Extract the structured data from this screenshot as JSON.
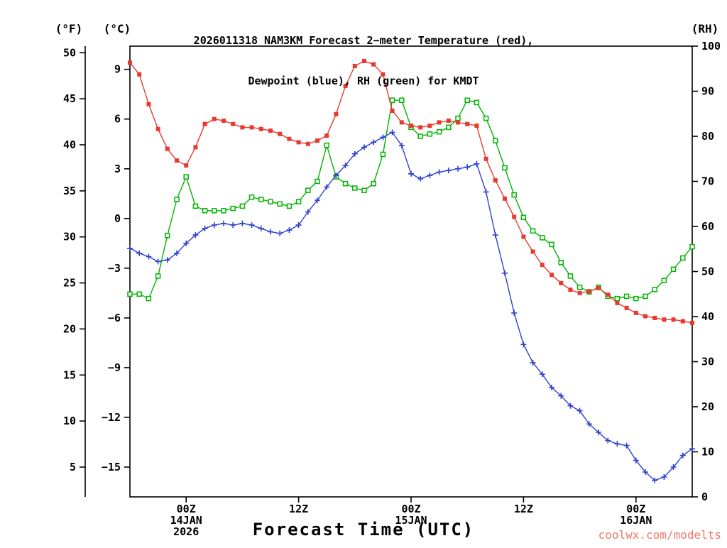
{
  "title": {
    "line1": "2026011318 NAM3KM Forecast 2−meter Temperature (red),",
    "line2": "Dewpoint (blue), RH (green) for KMDT"
  },
  "watermark": "coolwx.com/modelts",
  "watermark_color": "#f07868",
  "axes": {
    "fahrenheit": {
      "label": "(°F)",
      "ticks": [
        {
          "label": "50",
          "value": 50
        },
        {
          "label": "45",
          "value": 45
        },
        {
          "label": "40",
          "value": 40
        },
        {
          "label": "35",
          "value": 35
        },
        {
          "label": "30",
          "value": 30
        },
        {
          "label": "25",
          "value": 25
        },
        {
          "label": "20",
          "value": 20
        },
        {
          "label": "15",
          "value": 15
        },
        {
          "label": "10",
          "value": 10
        },
        {
          "label": "5",
          "value": 5
        }
      ]
    },
    "celsius": {
      "label": "(°C)",
      "ticks": [
        {
          "label": "9",
          "value": 9
        },
        {
          "label": "6",
          "value": 6
        },
        {
          "label": "3",
          "value": 3
        },
        {
          "label": "0",
          "value": 0
        },
        {
          "label": "−3",
          "value": -3
        },
        {
          "label": "−6",
          "value": -6
        },
        {
          "label": "−9",
          "value": -9
        },
        {
          "label": "−12",
          "value": -12
        },
        {
          "label": "−15",
          "value": -15
        }
      ]
    },
    "rh": {
      "label": "(RH)",
      "ticks": [
        {
          "label": "100",
          "value": 100
        },
        {
          "label": "90",
          "value": 90
        },
        {
          "label": "80",
          "value": 80
        },
        {
          "label": "70",
          "value": 70
        },
        {
          "label": "60",
          "value": 60
        },
        {
          "label": "50",
          "value": 50
        },
        {
          "label": "40",
          "value": 40
        },
        {
          "label": "30",
          "value": 30
        },
        {
          "label": "20",
          "value": 20
        },
        {
          "label": "10",
          "value": 10
        },
        {
          "label": "0",
          "value": 0
        }
      ]
    },
    "x": {
      "label": "Forecast Time (UTC)",
      "ticks": [
        {
          "hour": 6,
          "lines": [
            "00Z",
            "14JAN",
            "2026"
          ]
        },
        {
          "hour": 18,
          "lines": [
            "12Z"
          ]
        },
        {
          "hour": 30,
          "lines": [
            "00Z",
            "15JAN"
          ]
        },
        {
          "hour": 42,
          "lines": [
            "12Z"
          ]
        },
        {
          "hour": 54,
          "lines": [
            "00Z",
            "16JAN"
          ]
        }
      ]
    }
  },
  "chart_data": {
    "type": "line",
    "station": "KMDT",
    "model_run": "2026011318 NAM3KM",
    "hour_range": [
      0,
      60
    ],
    "celsius_range": [
      -16.8,
      10.4
    ],
    "rh_range": [
      0,
      100
    ],
    "hours": [
      0,
      1,
      2,
      3,
      4,
      5,
      6,
      7,
      8,
      9,
      10,
      11,
      12,
      13,
      14,
      15,
      16,
      17,
      18,
      19,
      20,
      21,
      22,
      23,
      24,
      25,
      26,
      27,
      28,
      29,
      30,
      31,
      32,
      33,
      34,
      35,
      36,
      37,
      38,
      39,
      40,
      41,
      42,
      43,
      44,
      45,
      46,
      47,
      48,
      49,
      50,
      51,
      52,
      53,
      54,
      55,
      56,
      57,
      58,
      59,
      60
    ],
    "series": [
      {
        "id": "temperature",
        "name": "2-meter Temperature",
        "units": "C",
        "color": "#e8392f",
        "axis": "celsius",
        "marker": "filled-square",
        "values": [
          9.4,
          8.7,
          6.9,
          5.4,
          4.2,
          3.5,
          3.2,
          4.3,
          5.7,
          6.0,
          5.9,
          5.7,
          5.5,
          5.5,
          5.4,
          5.3,
          5.1,
          4.8,
          4.6,
          4.5,
          4.7,
          5.0,
          6.3,
          8.0,
          9.2,
          9.5,
          9.3,
          8.7,
          6.5,
          5.8,
          5.6,
          5.5,
          5.6,
          5.8,
          5.9,
          5.8,
          5.7,
          5.6,
          3.6,
          2.3,
          1.2,
          0.1,
          -1.1,
          -2.0,
          -2.8,
          -3.4,
          -3.9,
          -4.3,
          -4.5,
          -4.4,
          -4.2,
          -4.6,
          -5.1,
          -5.4,
          -5.7,
          -5.9,
          -6.0,
          -6.1,
          -6.1,
          -6.2,
          -6.3
        ]
      },
      {
        "id": "dewpoint",
        "name": "Dewpoint",
        "units": "C",
        "color": "#2e41cf",
        "axis": "celsius",
        "marker": "plus",
        "values": [
          -1.8,
          -2.1,
          -2.3,
          -2.6,
          -2.5,
          -2.1,
          -1.5,
          -1.0,
          -0.6,
          -0.4,
          -0.3,
          -0.4,
          -0.3,
          -0.4,
          -0.6,
          -0.8,
          -0.9,
          -0.7,
          -0.4,
          0.4,
          1.1,
          1.9,
          2.6,
          3.2,
          3.9,
          4.3,
          4.6,
          4.9,
          5.2,
          4.4,
          2.7,
          2.4,
          2.6,
          2.8,
          2.9,
          3.0,
          3.1,
          3.3,
          1.6,
          -1.0,
          -3.3,
          -5.7,
          -7.6,
          -8.7,
          -9.4,
          -10.2,
          -10.7,
          -11.3,
          -11.6,
          -12.4,
          -12.9,
          -13.4,
          -13.6,
          -13.7,
          -14.6,
          -15.3,
          -15.8,
          -15.6,
          -15.0,
          -14.3,
          -13.9
        ]
      },
      {
        "id": "rh",
        "name": "RH",
        "units": "%",
        "color": "#00b400",
        "axis": "rh",
        "marker": "open-square",
        "values": [
          45,
          45,
          44,
          49,
          58,
          66,
          71,
          64.5,
          63.5,
          63.5,
          63.5,
          64,
          64.5,
          66.5,
          66,
          65.5,
          65,
          64.5,
          65.5,
          68,
          70,
          78,
          71,
          69.5,
          68.5,
          68,
          69.5,
          76,
          88,
          88,
          82,
          80,
          80.5,
          81,
          82,
          84,
          88,
          87.5,
          84,
          79,
          73,
          67,
          62,
          59,
          57.5,
          56,
          52,
          49,
          46.5,
          45.5,
          46.5,
          44.5,
          44,
          44.5,
          44,
          44.5,
          46,
          48,
          50.5,
          53,
          55.5
        ]
      }
    ]
  }
}
